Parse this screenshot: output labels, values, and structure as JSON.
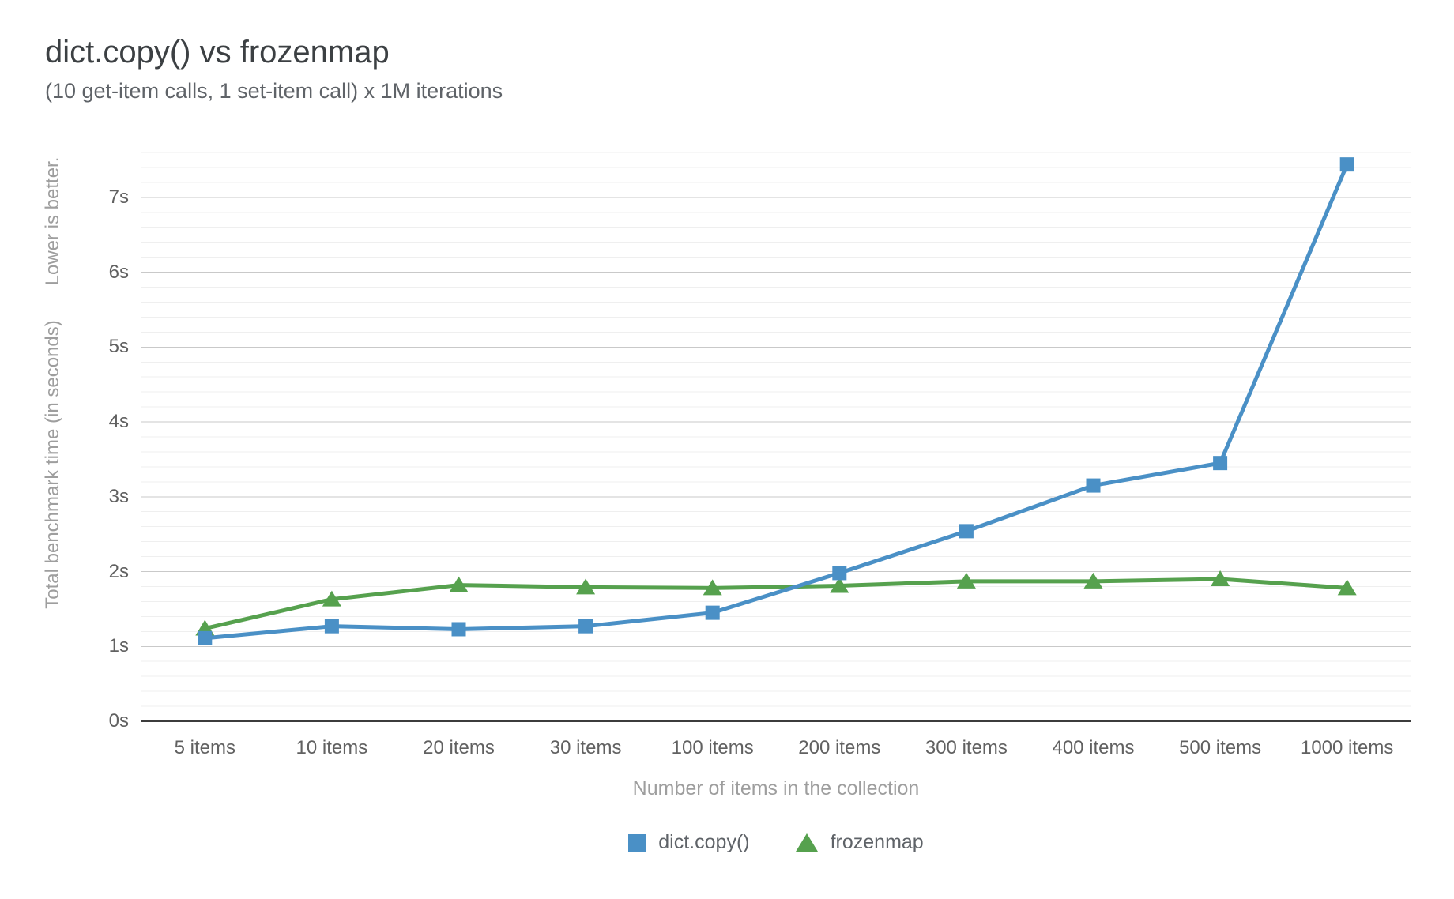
{
  "page": {
    "title": "dict.copy() vs frozenmap",
    "subtitle": "(10 get-item calls, 1 set-item call) x 1M iterations"
  },
  "chart_data": {
    "type": "line",
    "title": "dict.copy() vs frozenmap",
    "subtitle": "(10 get-item calls, 1 set-item call) x 1M iterations",
    "categories": [
      "5 items",
      "10 items",
      "20 items",
      "30 items",
      "100 items",
      "200 items",
      "300 items",
      "400 items",
      "500 items",
      "1000 items"
    ],
    "series": [
      {
        "name": "dict.copy()",
        "marker": "square",
        "color": "#4a90c6",
        "values": [
          1.11,
          1.27,
          1.23,
          1.27,
          1.45,
          1.98,
          2.54,
          3.15,
          3.45,
          7.44
        ]
      },
      {
        "name": "frozenmap",
        "marker": "triangle",
        "color": "#56a14e",
        "values": [
          1.24,
          1.63,
          1.82,
          1.79,
          1.78,
          1.81,
          1.87,
          1.87,
          1.9,
          1.78
        ]
      }
    ],
    "xlabel": "Number of items in the collection",
    "ylabel": "Total benchmark time (in seconds)",
    "ylabel_secondary": "Lower is better.",
    "yticks": [
      "0s",
      "1s",
      "2s",
      "3s",
      "4s",
      "5s",
      "6s",
      "7s"
    ],
    "ylim": [
      0,
      7.6
    ],
    "y_major_step": 1,
    "y_minor_step": 0.2,
    "grid": true,
    "legend_position": "bottom"
  },
  "colors": {
    "grid_major": "#c9c9c9",
    "grid_minor": "#efefef",
    "axis": "#3c3c3c",
    "tick_label": "#616161",
    "axis_title": "#9e9e9e",
    "title": "#3c4043",
    "subtitle": "#5f6368"
  }
}
